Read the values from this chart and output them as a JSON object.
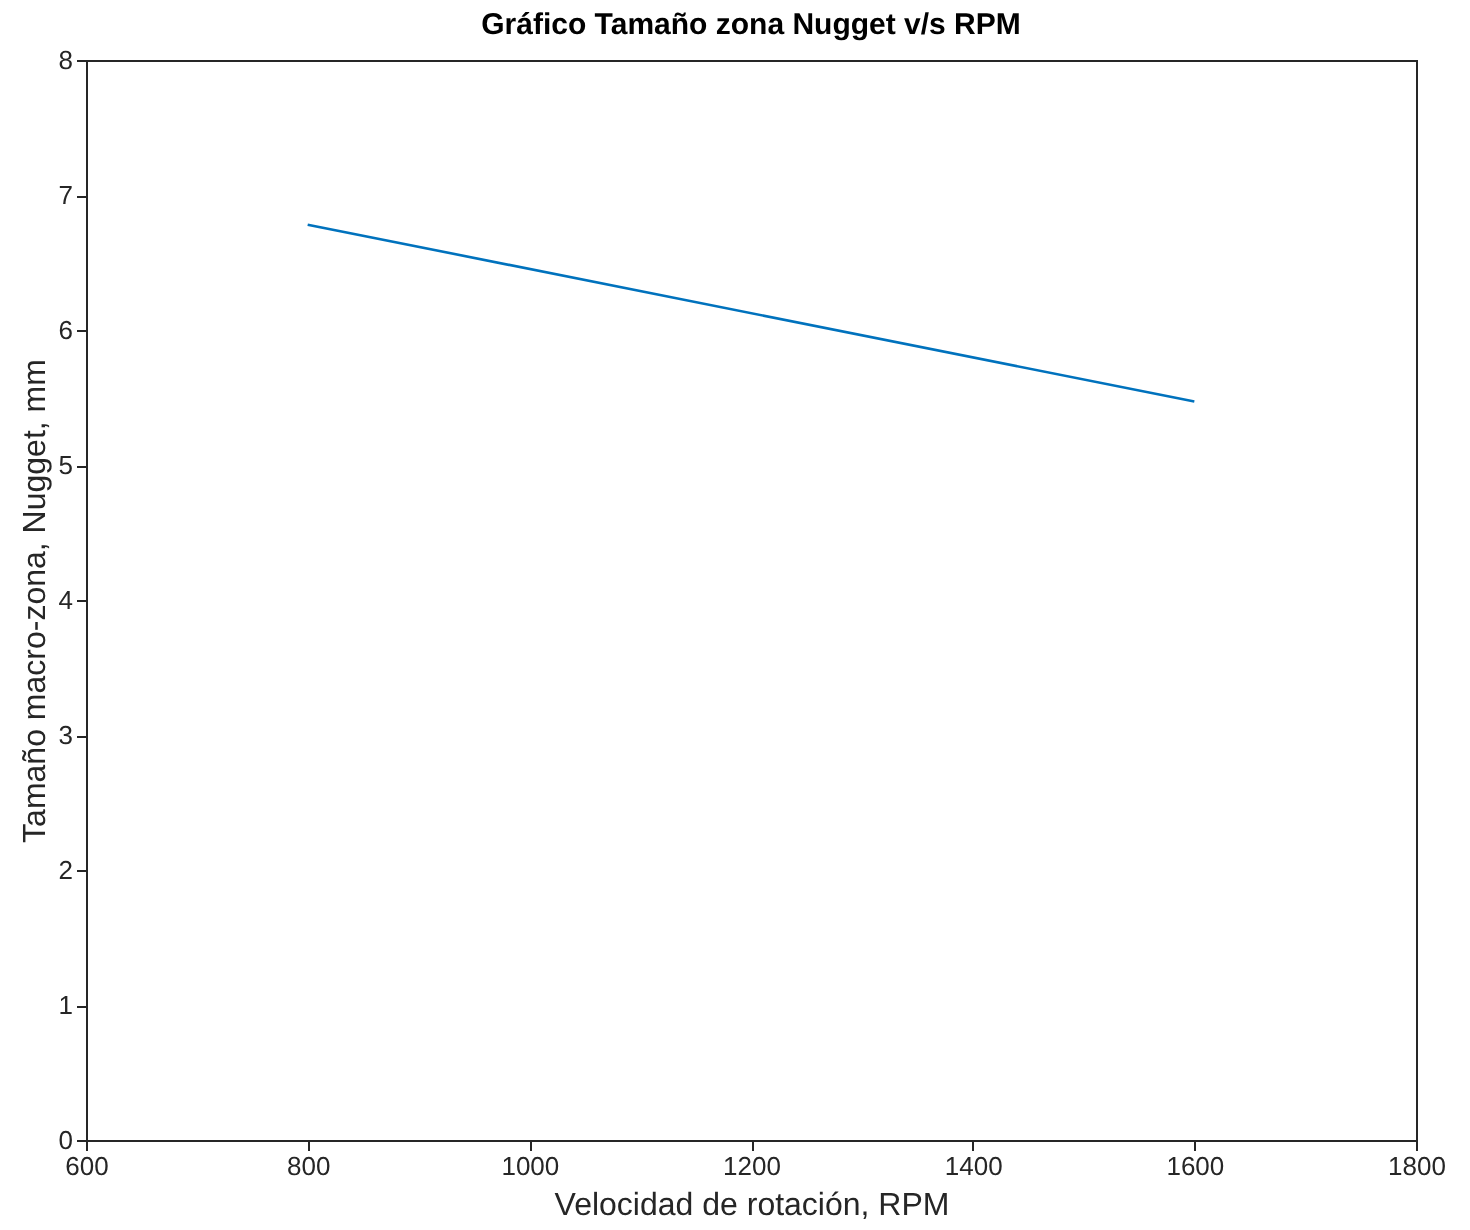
{
  "chart_data": {
    "type": "line",
    "title": "Gráfico Tamaño zona Nugget v/s RPM",
    "xlabel": "Velocidad de rotación, RPM",
    "ylabel": "Tamaño macro-zona, Nugget, mm",
    "x": [
      800,
      1600
    ],
    "series": [
      {
        "color": "#0072bd",
        "values": [
          6.78,
          5.47
        ]
      }
    ],
    "xlim": [
      600,
      1800
    ],
    "xticks": [
      600,
      800,
      1000,
      1200,
      1400,
      1600,
      1800
    ],
    "ylim": [
      0,
      8
    ],
    "yticks": [
      0,
      1,
      2,
      3,
      4,
      5,
      6,
      7,
      8
    ],
    "grid": false,
    "legend": false,
    "marker": "none",
    "line_style": "solid"
  }
}
